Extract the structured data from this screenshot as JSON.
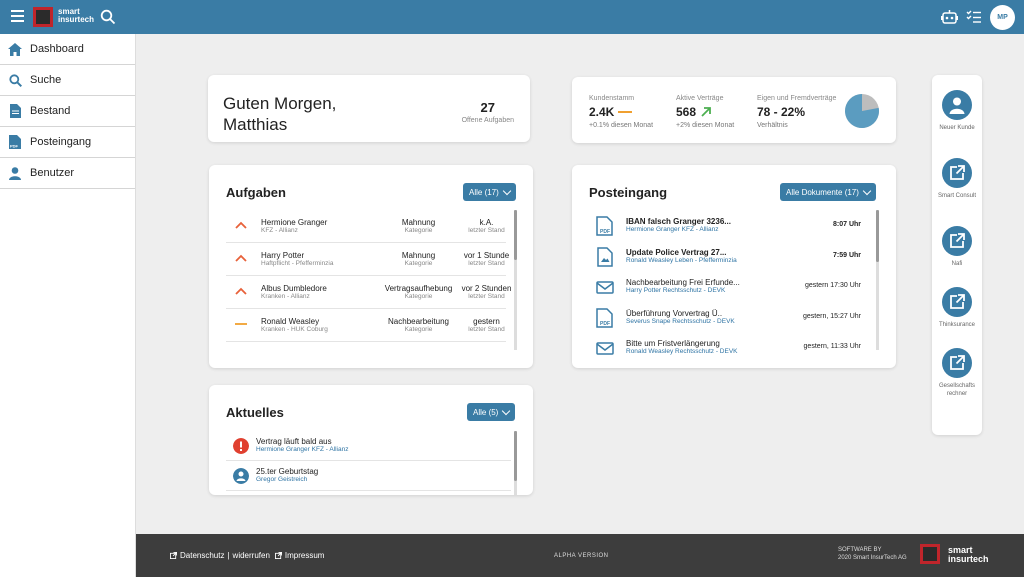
{
  "header": {
    "logo_text": "smart insurtech",
    "avatar_initials": "MP"
  },
  "sidebar": {
    "items": [
      {
        "label": "Dashboard",
        "icon": "home-icon"
      },
      {
        "label": "Suche",
        "icon": "search-icon"
      },
      {
        "label": "Bestand",
        "icon": "document-icon"
      },
      {
        "label": "Posteingang",
        "icon": "pdf-icon"
      },
      {
        "label": "Benutzer",
        "icon": "user-icon"
      }
    ]
  },
  "greeting": {
    "text": "Guten Morgen, Matthias",
    "open_tasks_count": "27",
    "open_tasks_label": "Offene Aufgaben"
  },
  "stats": {
    "kundenstamm": {
      "label": "Kundenstamm",
      "value": "2.4K",
      "sub": "+0.1% diesen Monat",
      "trend": "flat"
    },
    "vertraege": {
      "label": "Aktive Verträge",
      "value": "568",
      "sub": "+2% diesen Monat",
      "trend": "up"
    },
    "verhaeltnis": {
      "label": "Eigen und Fremdverträge",
      "value": "78 - 22%",
      "sub": "Verhältnis",
      "pie_own_fraction": 0.78
    }
  },
  "aufgaben": {
    "title": "Aufgaben",
    "filter": "Alle (17)",
    "rows": [
      {
        "name": "Hermione Granger",
        "sub": "KFZ - Allianz",
        "category": "Mahnung",
        "category_label": "Kategorie",
        "due": "k.A.",
        "due_label": "letzter Stand",
        "priority": "high"
      },
      {
        "name": "Harry Potter",
        "sub": "Haftpflicht - Pfefferminzia",
        "category": "Mahnung",
        "category_label": "Kategorie",
        "due": "vor 1 Stunde",
        "due_label": "letzter Stand",
        "priority": "high"
      },
      {
        "name": "Albus Dumbledore",
        "sub": "Kranken - Allianz",
        "category": "Vertragsaufhebung",
        "category_label": "Kategorie",
        "due": "vor 2 Stunden",
        "due_label": "letzter Stand",
        "priority": "high"
      },
      {
        "name": "Ronald Weasley",
        "sub": "Kranken - HUK Coburg",
        "category": "Nachbearbeitung",
        "category_label": "Kategorie",
        "due": "gestern",
        "due_label": "letzter Stand",
        "priority": "medium"
      }
    ]
  },
  "aktuelles": {
    "title": "Aktuelles",
    "filter": "Alle (5)",
    "rows": [
      {
        "title": "Vertrag läuft bald aus",
        "sub": "Hermione Granger  KFZ - Allianz",
        "icon": "alert-icon"
      },
      {
        "title": "25.ter Geburtstag",
        "sub": "Gregor Geistreich",
        "icon": "person-icon"
      }
    ]
  },
  "posteingang": {
    "title": "Posteingang",
    "filter": "Alle Dokumente (17)",
    "rows": [
      {
        "title": "IBAN falsch Granger 3236...",
        "sub": "Hermione Granger   KFZ - Allianz",
        "time": "8:07 Uhr",
        "icon": "pdf-icon",
        "unread": true
      },
      {
        "title": "Update Police Vertrag 27...",
        "sub": "Ronald Weasley   Leben - Pfefferminzia",
        "time": "7:59 Uhr",
        "icon": "image-file-icon",
        "unread": true
      },
      {
        "title": "Nachbearbeitung Frei Erfunde...",
        "sub": "Harry Potter   Rechtsschutz - DEVK",
        "time": "gestern 17:30 Uhr",
        "icon": "mail-icon",
        "unread": false
      },
      {
        "title": "Überführung Vorvertrag Ü..",
        "sub": "Severus Snape   Rechtsschutz - DEVK",
        "time": "gestern, 15:27 Uhr",
        "icon": "pdf-icon",
        "unread": false
      },
      {
        "title": "Bitte um Fristverlängerung",
        "sub": "Ronald Weasley   Rechtsschutz - DEVK",
        "time": "gestern, 11:33 Uhr",
        "icon": "mail-icon",
        "unread": false
      }
    ]
  },
  "tools": [
    {
      "label": "Neuer Kunde",
      "icon": "person-icon"
    },
    {
      "label": "Smart Consult",
      "icon": "external-link-icon"
    },
    {
      "label": "Nafi",
      "icon": "external-link-icon"
    },
    {
      "label": "Thinksurance",
      "icon": "external-link-icon"
    },
    {
      "label": "Gesellschafts rechner",
      "icon": "external-link-icon"
    }
  ],
  "footer": {
    "datenschutz": "Datenschutz",
    "widerrufen": "widerrufen",
    "impressum": "Impressum",
    "separator": "|",
    "alpha": "ALPHA VERSION",
    "software_by": "SOFTWARE BY",
    "company": "2020 Smart InsurTech AG",
    "logo_text": "smart insurtech"
  },
  "colors": {
    "primary": "#3a7ca5",
    "priority_high": "#e8613a",
    "priority_medium": "#f0a030",
    "trend_up": "#4caf50",
    "alert": "#e04030",
    "link": "#2f74a4"
  }
}
